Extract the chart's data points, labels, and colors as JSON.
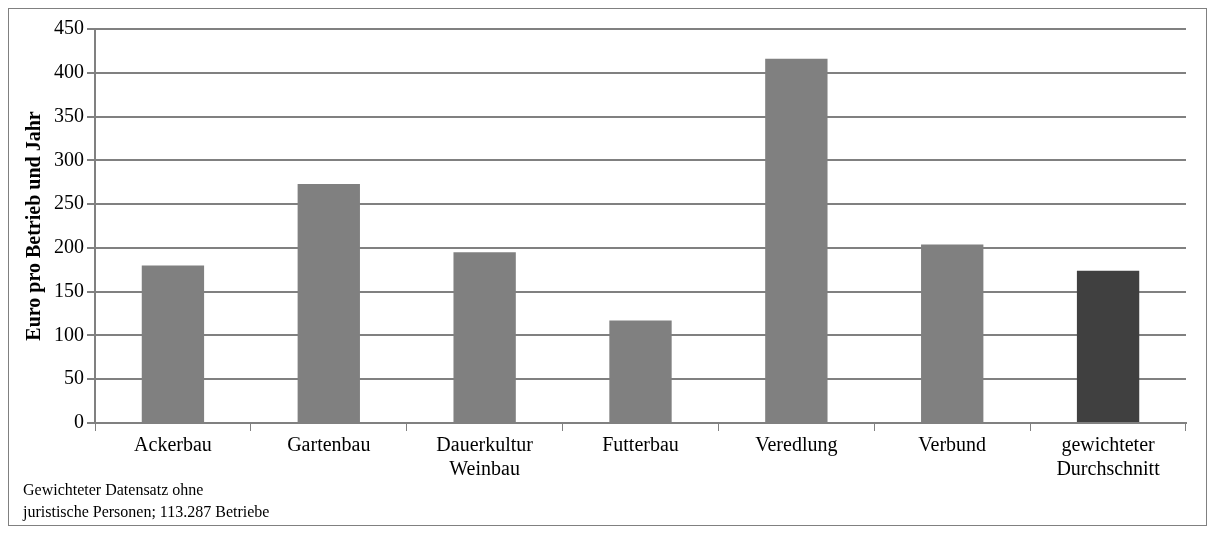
{
  "chart_data": {
    "type": "bar",
    "ylabel": "Euro pro Betrieb und Jahr",
    "categories": [
      "Ackerbau",
      "Gartenbau",
      "Dauerkultur Weinbau",
      "Futterbau",
      "Veredlung",
      "Verbund",
      "gewichteter Durchschnitt"
    ],
    "values": [
      180,
      273,
      195,
      117,
      416,
      204,
      174
    ],
    "colors": [
      "#808080",
      "#808080",
      "#808080",
      "#808080",
      "#808080",
      "#808080",
      "#404040"
    ],
    "ylim": [
      0,
      450
    ],
    "yticks": [
      0,
      50,
      100,
      150,
      200,
      250,
      300,
      350,
      400,
      450
    ],
    "grid": "y",
    "annotations": [
      "Gewichteter Datensatz ohne juristische Personen; 113.287 Betriebe"
    ]
  }
}
